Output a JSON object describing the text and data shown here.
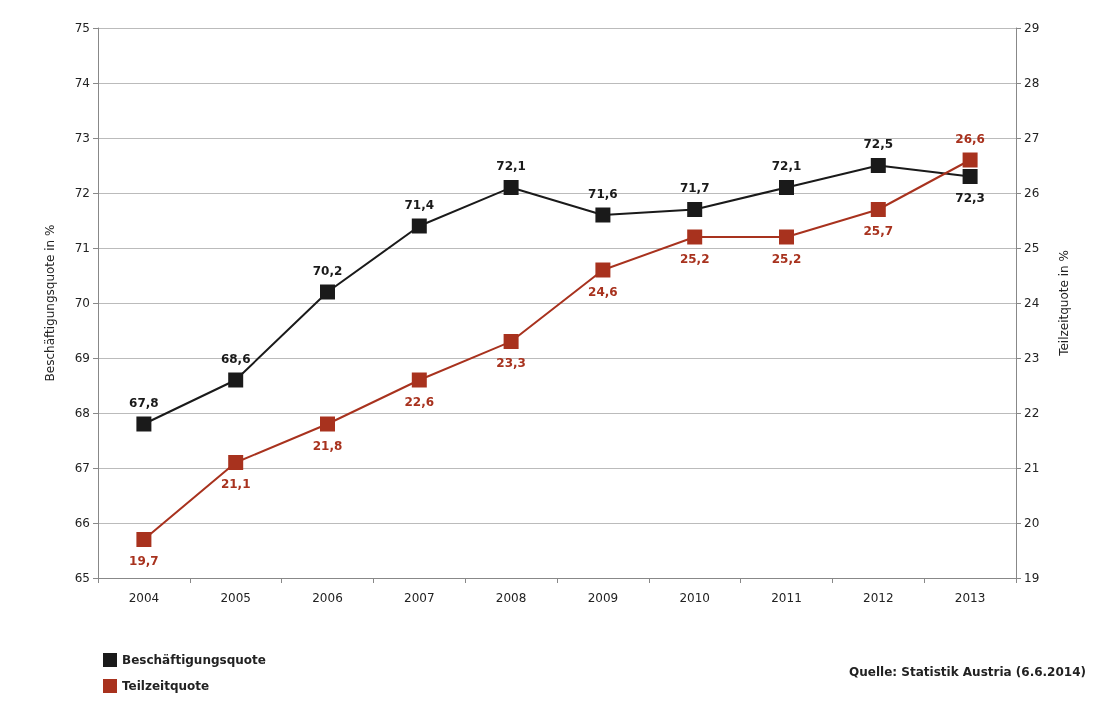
{
  "chart_data": {
    "type": "line",
    "categories": [
      "2004",
      "2005",
      "2006",
      "2007",
      "2008",
      "2009",
      "2010",
      "2011",
      "2012",
      "2013"
    ],
    "ylabel": "Beschäftigungsquote in %",
    "y2label": "Teilzeitquote in %",
    "ylim": [
      65,
      75
    ],
    "yticks": [
      65,
      66,
      67,
      68,
      69,
      70,
      71,
      72,
      73,
      74,
      75
    ],
    "y2lim": [
      19,
      29
    ],
    "y2ticks": [
      19,
      20,
      21,
      22,
      23,
      24,
      25,
      26,
      27,
      28,
      29
    ],
    "series": [
      {
        "name": "Beschäftigungsquote",
        "color": "#1a1a1a",
        "values": [
          67.8,
          68.6,
          70.2,
          71.4,
          72.1,
          71.6,
          71.7,
          72.1,
          72.5,
          72.3
        ],
        "value_labels": [
          "67,8",
          "68,6",
          "70,2",
          "71,4",
          "72,1",
          "71,6",
          "71,7",
          "72,1",
          "72,5",
          "72,3"
        ]
      },
      {
        "name": "Teilzeitquote",
        "color": "#a8321e",
        "axis": "y2",
        "values": [
          19.7,
          21.1,
          21.8,
          22.6,
          23.3,
          24.6,
          25.2,
          25.2,
          25.7,
          26.6
        ],
        "value_labels": [
          "19,7",
          "21,1",
          "21,8",
          "22,6",
          "23,3",
          "24,6",
          "25,2",
          "25,2",
          "25,7",
          "26,6"
        ]
      }
    ],
    "marker": "square",
    "line_style": "solid",
    "grid": "y",
    "legend": "bottom left",
    "annotations": [
      "Quelle: Statistik Austria (6.6.2014)"
    ]
  }
}
